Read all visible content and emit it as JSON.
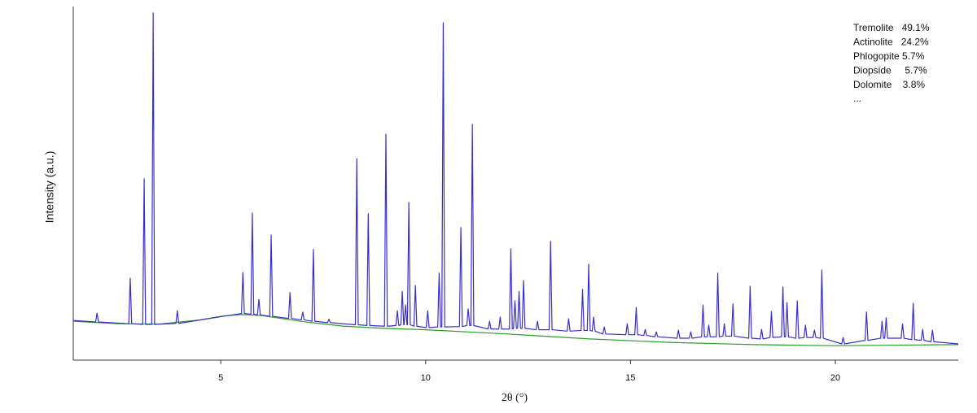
{
  "chart_data": {
    "type": "line",
    "xlabel": "2θ (°)",
    "ylabel": "Intensity (a.u.)",
    "annotations": [
      "Tremolite   49.1%",
      "Actinolite   24.2%",
      "Phlogopite 5.7%",
      "Diopside     5.7%",
      "Dolomite    3.8%",
      "..."
    ],
    "xlim": [
      1.4,
      23.0
    ],
    "xticks": [
      5,
      10,
      15,
      20
    ],
    "ylim": [
      0,
      100
    ],
    "series": [
      {
        "color": "#3b2fc9",
        "x": [
          1.4,
          1.945,
          1.98,
          2.015,
          2.755,
          2.79,
          2.825,
          3.095,
          3.13,
          3.165,
          3.315,
          3.35,
          3.385,
          3.905,
          3.94,
          3.975,
          5.505,
          5.54,
          5.575,
          5.735,
          5.77,
          5.805,
          5.895,
          5.93,
          5.965,
          6.195,
          6.23,
          6.265,
          6.655,
          6.69,
          6.725,
          6.965,
          7.0,
          7.035,
          7.225,
          7.26,
          7.295,
          7.605,
          7.64,
          7.675,
          8.285,
          8.32,
          8.355,
          8.565,
          8.6,
          8.635,
          8.995,
          9.03,
          9.065,
          9.275,
          9.31,
          9.345,
          9.395,
          9.43,
          9.465,
          9.475,
          9.51,
          9.545,
          9.555,
          9.59,
          9.625,
          9.715,
          9.75,
          9.785,
          10.015,
          10.05,
          10.085,
          10.295,
          10.33,
          10.365,
          10.395,
          10.43,
          10.465,
          10.825,
          10.86,
          10.895,
          11.005,
          11.04,
          11.075,
          11.105,
          11.14,
          11.175,
          11.525,
          11.56,
          11.595,
          11.785,
          11.82,
          11.855,
          12.045,
          12.08,
          12.115,
          12.145,
          12.18,
          12.215,
          12.245,
          12.28,
          12.315,
          12.355,
          12.39,
          12.425,
          12.695,
          12.73,
          12.765,
          13.015,
          13.05,
          13.085,
          13.455,
          13.49,
          13.525,
          13.795,
          13.83,
          13.865,
          13.945,
          13.98,
          14.015,
          14.065,
          14.1,
          14.135,
          14.325,
          14.36,
          14.395,
          14.885,
          14.92,
          14.955,
          15.105,
          15.14,
          15.175,
          15.325,
          15.36,
          15.395,
          15.595,
          15.63,
          15.665,
          16.135,
          16.17,
          16.205,
          16.435,
          16.47,
          16.505,
          16.735,
          16.77,
          16.805,
          16.875,
          16.91,
          16.945,
          17.095,
          17.13,
          17.165,
          17.255,
          17.29,
          17.325,
          17.465,
          17.5,
          17.535,
          17.885,
          17.92,
          17.955,
          18.165,
          18.2,
          18.235,
          18.405,
          18.44,
          18.475,
          18.685,
          18.72,
          18.755,
          18.785,
          18.82,
          18.855,
          19.035,
          19.07,
          19.105,
          19.235,
          19.27,
          19.305,
          19.455,
          19.49,
          19.525,
          19.635,
          19.67,
          19.705,
          20.155,
          20.19,
          20.225,
          20.725,
          20.76,
          20.795,
          21.105,
          21.14,
          21.175,
          21.205,
          21.24,
          21.275,
          21.605,
          21.64,
          21.675,
          21.865,
          21.9,
          21.935,
          22.095,
          22.13,
          22.165,
          22.335,
          22.37,
          22.405,
          23.0
        ],
        "values": [
          11.2,
          10.8,
          13.3,
          10.8,
          10.3,
          23.2,
          10.3,
          10.1,
          51.3,
          10.1,
          10.1,
          98.2,
          10.1,
          10.4,
          14.0,
          10.4,
          13.2,
          24.8,
          13.2,
          13.0,
          41.6,
          13.0,
          12.8,
          17.2,
          12.8,
          12.4,
          35.4,
          12.4,
          11.8,
          19.1,
          11.8,
          11.4,
          13.6,
          11.4,
          11.0,
          31.3,
          11.0,
          10.6,
          11.6,
          10.6,
          10.0,
          57.0,
          10.0,
          9.8,
          41.4,
          9.8,
          9.6,
          63.9,
          9.6,
          9.8,
          14.0,
          9.8,
          10.0,
          19.5,
          10.0,
          10.0,
          15.6,
          10.0,
          10.0,
          44.6,
          10.0,
          9.6,
          21.1,
          9.6,
          9.2,
          14.0,
          9.2,
          9.4,
          24.6,
          9.4,
          9.4,
          95.4,
          9.4,
          9.5,
          37.5,
          9.5,
          9.8,
          14.5,
          9.8,
          9.8,
          66.7,
          9.8,
          8.8,
          11.0,
          8.8,
          8.8,
          12.2,
          8.8,
          8.8,
          31.5,
          8.8,
          9.0,
          16.8,
          9.0,
          9.0,
          19.5,
          9.0,
          9.0,
          22.5,
          9.0,
          8.6,
          11.0,
          8.6,
          8.6,
          33.6,
          8.6,
          8.2,
          11.7,
          8.2,
          8.4,
          20.0,
          8.4,
          8.4,
          27.1,
          8.4,
          8.2,
          12.2,
          8.2,
          7.4,
          9.4,
          7.4,
          7.2,
          10.3,
          7.2,
          7.2,
          14.9,
          7.2,
          7.0,
          8.7,
          7.0,
          6.6,
          8.0,
          6.6,
          6.2,
          8.5,
          6.2,
          6.2,
          8.0,
          6.2,
          6.6,
          15.6,
          6.6,
          6.6,
          9.9,
          6.6,
          6.6,
          24.6,
          6.6,
          6.8,
          10.3,
          6.8,
          6.8,
          15.9,
          6.8,
          6.2,
          20.9,
          6.2,
          6.0,
          8.7,
          6.0,
          6.4,
          13.8,
          6.4,
          6.6,
          20.7,
          6.6,
          6.6,
          16.3,
          6.6,
          6.2,
          16.8,
          6.2,
          6.4,
          9.9,
          6.4,
          6.4,
          8.5,
          6.4,
          6.2,
          25.5,
          6.2,
          4.6,
          6.4,
          4.6,
          5.6,
          13.6,
          5.6,
          6.2,
          11.0,
          6.2,
          6.2,
          12.0,
          6.2,
          6.2,
          10.3,
          6.2,
          5.8,
          16.1,
          5.8,
          5.6,
          8.7,
          5.6,
          5.2,
          8.5,
          5.2,
          4.6
        ]
      },
      {
        "color": "#2a9d2a",
        "x": [
          1.4,
          2.5,
          3.5,
          4.5,
          5.0,
          5.5,
          6.0,
          7.0,
          8.0,
          9.0,
          10.0,
          12.0,
          14.0,
          16.0,
          18.0,
          20.0,
          22.0,
          23.0
        ],
        "values": [
          11.0,
          10.3,
          10.2,
          11.4,
          12.4,
          12.9,
          12.6,
          10.9,
          9.6,
          9.0,
          8.6,
          7.4,
          6.0,
          5.0,
          4.4,
          4.1,
          4.3,
          4.4
        ]
      }
    ]
  }
}
